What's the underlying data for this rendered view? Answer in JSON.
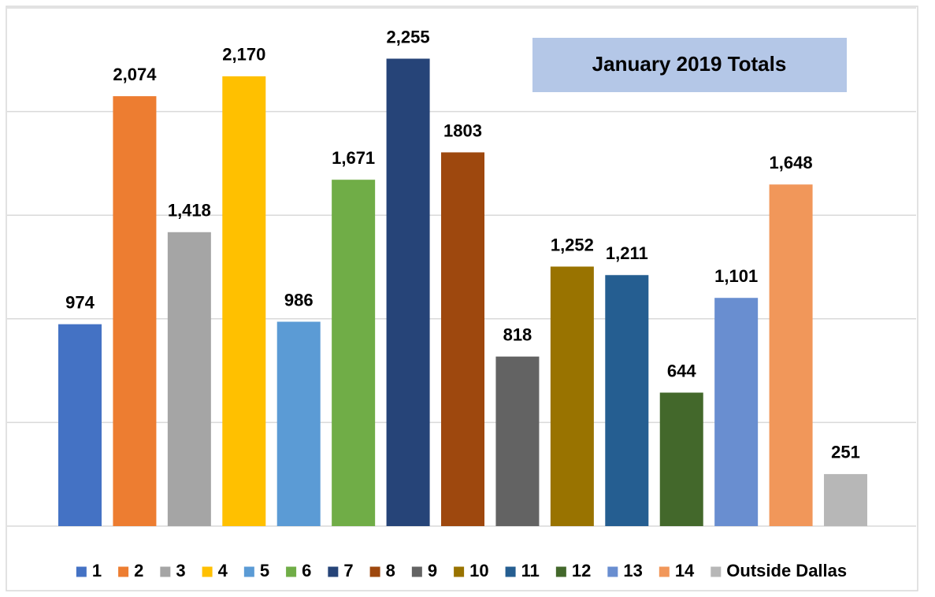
{
  "chart_data": {
    "type": "bar",
    "title": "January 2019 Totals",
    "ylim": [
      0,
      2500
    ],
    "yticks": [
      0,
      500,
      1000,
      1500,
      2000,
      2500
    ],
    "grid": true,
    "legend": "bottom",
    "series": [
      {
        "name": "1",
        "color": "#4472c4",
        "values": [
          974
        ],
        "value_labels": [
          "974"
        ]
      },
      {
        "name": "2",
        "color": "#ed7d31",
        "values": [
          2074
        ],
        "value_labels": [
          "2,074"
        ]
      },
      {
        "name": "3",
        "color": "#a5a5a5",
        "values": [
          1418
        ],
        "value_labels": [
          "1,418"
        ]
      },
      {
        "name": "4",
        "color": "#ffc000",
        "values": [
          2170
        ],
        "value_labels": [
          "2,170"
        ]
      },
      {
        "name": "5",
        "color": "#5b9bd5",
        "values": [
          986
        ],
        "value_labels": [
          "986"
        ]
      },
      {
        "name": "6",
        "color": "#70ad47",
        "values": [
          1671
        ],
        "value_labels": [
          "1,671"
        ]
      },
      {
        "name": "7",
        "color": "#264478",
        "values": [
          2255
        ],
        "value_labels": [
          "2,255"
        ]
      },
      {
        "name": "8",
        "color": "#9e480e",
        "values": [
          1803
        ],
        "value_labels": [
          "1803"
        ]
      },
      {
        "name": "9",
        "color": "#636363",
        "values": [
          818
        ],
        "value_labels": [
          "818"
        ]
      },
      {
        "name": "10",
        "color": "#997300",
        "values": [
          1252
        ],
        "value_labels": [
          "1,252"
        ]
      },
      {
        "name": "11",
        "color": "#255e91",
        "values": [
          1211
        ],
        "value_labels": [
          "1,211"
        ]
      },
      {
        "name": "12",
        "color": "#43682b",
        "values": [
          644
        ],
        "value_labels": [
          "644"
        ]
      },
      {
        "name": "13",
        "color": "#698ed0",
        "values": [
          1101
        ],
        "value_labels": [
          "1,101"
        ]
      },
      {
        "name": "14",
        "color": "#f1975a",
        "values": [
          1648
        ],
        "value_labels": [
          "1,648"
        ]
      },
      {
        "name": "Outside Dallas",
        "color": "#b7b7b7",
        "values": [
          251
        ],
        "value_labels": [
          "251"
        ]
      }
    ]
  }
}
